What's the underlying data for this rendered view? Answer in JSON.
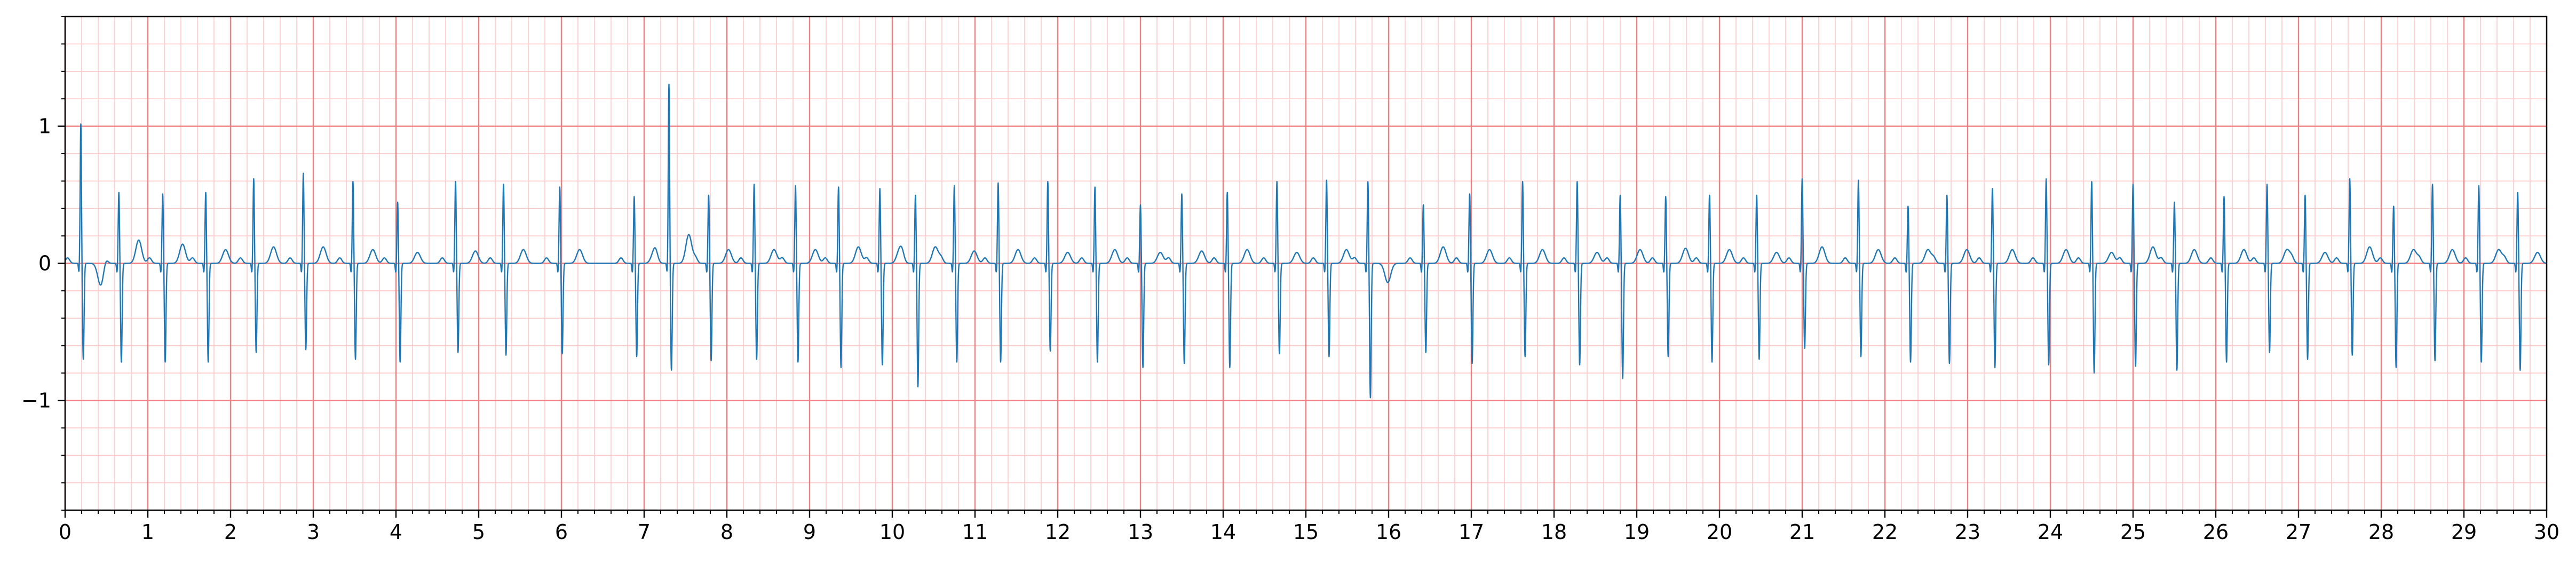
{
  "chart_data": {
    "type": "line",
    "title": "",
    "xlabel": "",
    "ylabel": "",
    "xlim": [
      0,
      30
    ],
    "ylim": [
      -1.8,
      1.8
    ],
    "grid": {
      "major": true,
      "minor": true,
      "major_x_step": 1,
      "major_y_step": 1,
      "minor_x_step": 0.2,
      "minor_y_step": 0.2
    },
    "x_ticks": [
      0,
      1,
      2,
      3,
      4,
      5,
      6,
      7,
      8,
      9,
      10,
      11,
      12,
      13,
      14,
      15,
      16,
      17,
      18,
      19,
      20,
      21,
      22,
      23,
      24,
      25,
      26,
      27,
      28,
      29,
      30
    ],
    "x_tick_labels": [
      "0",
      "1",
      "2",
      "3",
      "4",
      "5",
      "6",
      "7",
      "8",
      "9",
      "10",
      "11",
      "12",
      "13",
      "14",
      "15",
      "16",
      "17",
      "18",
      "19",
      "20",
      "21",
      "22",
      "23",
      "24",
      "25",
      "26",
      "27",
      "28",
      "29",
      "30"
    ],
    "y_ticks": [
      -1,
      0,
      1
    ],
    "y_tick_labels": [
      "−1",
      "0",
      "1"
    ],
    "series": [
      {
        "beat_times": [
          0.19,
          0.65,
          1.18,
          1.7,
          2.28,
          2.88,
          3.48,
          4.02,
          4.72,
          5.3,
          5.98,
          6.88,
          7.3,
          7.78,
          8.33,
          8.83,
          9.35,
          9.85,
          10.28,
          10.75,
          11.28,
          11.88,
          12.45,
          13.0,
          13.5,
          14.05,
          14.65,
          15.25,
          15.75,
          16.42,
          16.98,
          17.62,
          18.28,
          18.8,
          19.35,
          19.88,
          20.45,
          21.0,
          21.68,
          22.28,
          22.75,
          23.3,
          23.95,
          24.5,
          25.0,
          25.5,
          26.1,
          26.62,
          27.08,
          27.62,
          28.15,
          28.62,
          29.18,
          29.65
        ],
        "r_peaks": [
          1.02,
          0.52,
          0.51,
          0.52,
          0.62,
          0.66,
          0.6,
          0.45,
          0.6,
          0.58,
          0.56,
          0.49,
          1.31,
          0.5,
          0.58,
          0.57,
          0.56,
          0.55,
          0.5,
          0.57,
          0.59,
          0.6,
          0.56,
          0.43,
          0.51,
          0.52,
          0.6,
          0.61,
          0.6,
          0.43,
          0.51,
          0.6,
          0.6,
          0.5,
          0.49,
          0.5,
          0.5,
          0.62,
          0.61,
          0.42,
          0.5,
          0.55,
          0.62,
          0.6,
          0.58,
          0.45,
          0.49,
          0.58,
          0.5,
          0.62,
          0.42,
          0.58,
          0.57,
          0.52
        ],
        "s_troughs": [
          -0.7,
          -0.72,
          -0.72,
          -0.72,
          -0.65,
          -0.63,
          -0.7,
          -0.72,
          -0.65,
          -0.67,
          -0.66,
          -0.68,
          -0.78,
          -0.71,
          -0.7,
          -0.72,
          -0.76,
          -0.74,
          -0.9,
          -0.72,
          -0.72,
          -0.64,
          -0.72,
          -0.76,
          -0.73,
          -0.76,
          -0.66,
          -0.68,
          -0.98,
          -0.65,
          -0.73,
          -0.68,
          -0.74,
          -0.84,
          -0.68,
          -0.72,
          -0.7,
          -0.62,
          -0.68,
          -0.72,
          -0.73,
          -0.76,
          -0.74,
          -0.8,
          -0.75,
          -0.78,
          -0.72,
          -0.65,
          -0.7,
          -0.67,
          -0.76,
          -0.71,
          -0.72,
          -0.78
        ],
        "t_peaks": [
          -0.16,
          0.17,
          0.14,
          0.1,
          0.12,
          0.12,
          0.1,
          0.08,
          0.09,
          0.1,
          0.1,
          0.08,
          0.21,
          0.1,
          0.1,
          0.1,
          0.12,
          0.1,
          0.12,
          0.09,
          0.1,
          0.08,
          0.1,
          0.08,
          0.09,
          0.1,
          0.08,
          0.1,
          -0.14,
          0.12,
          0.1,
          0.1,
          0.08,
          0.1,
          0.11,
          0.1,
          0.08,
          0.12,
          0.1,
          0.1,
          0.1,
          0.1,
          0.1,
          0.08,
          0.12,
          0.1,
          0.1,
          0.1,
          0.08,
          0.12,
          0.1,
          0.1,
          0.1,
          0.08
        ]
      }
    ]
  },
  "style": {
    "trace_color": "#1f77b4",
    "major_grid_color": "#f08080",
    "minor_grid_color": "#ffc8c8",
    "axis_color": "#000000"
  }
}
